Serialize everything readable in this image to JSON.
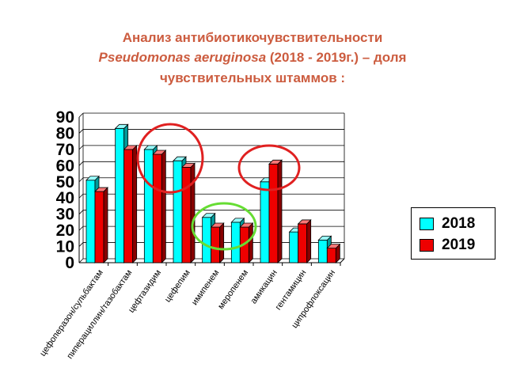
{
  "title": {
    "line1": "Анализ антибиотикочувствительности",
    "line2_italic": "Pseudomonas aeruginosa",
    "line2_rest": " (2018 - 2019г.) – доля",
    "line3": "чувствительных штаммов :"
  },
  "colors": {
    "title": "#cc5c3f",
    "series_2018": "#00ffff",
    "series_2019": "#ee0000",
    "circle_red": "#e02020",
    "circle_green": "#66dd33"
  },
  "chart_data": {
    "type": "bar",
    "categories": [
      "цефоперазон/сульбактам",
      "пиперациллин/тазобактам",
      "цефтазидим",
      "цефепим",
      "имипенем",
      "меропенем",
      "амикацин",
      "гентамицин",
      "ципрофлоксацин"
    ],
    "series": [
      {
        "name": "2018",
        "values": [
          51,
          83,
          70,
          63,
          28,
          25,
          50,
          19,
          14
        ]
      },
      {
        "name": "2019",
        "values": [
          44,
          70,
          67,
          59,
          22,
          22,
          61,
          24,
          9
        ]
      }
    ],
    "ylim": [
      0,
      90
    ],
    "yticks": [
      0,
      10,
      20,
      30,
      40,
      50,
      60,
      70,
      80,
      90
    ],
    "grid": true,
    "legend_position": "right",
    "style": "3d-bars"
  },
  "legend": [
    {
      "label": "2018"
    },
    {
      "label": "2019"
    }
  ]
}
